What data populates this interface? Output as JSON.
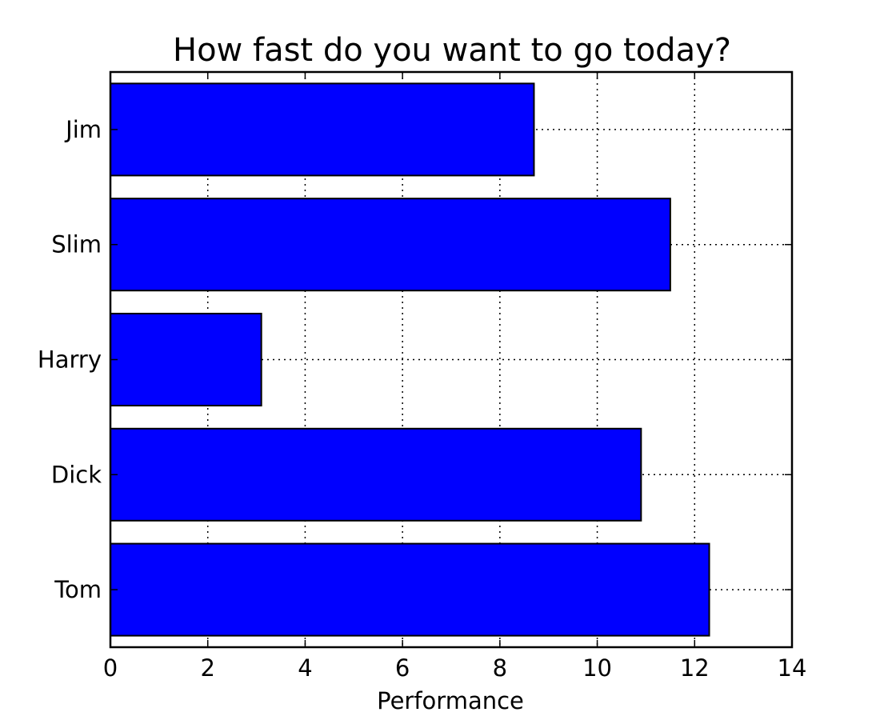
{
  "chart_data": {
    "type": "bar",
    "orientation": "horizontal",
    "title": "How fast do you want to go today?",
    "xlabel": "Performance",
    "ylabel": "",
    "categories": [
      "Tom",
      "Dick",
      "Harry",
      "Slim",
      "Jim"
    ],
    "values": [
      12.3,
      10.9,
      3.1,
      11.5,
      8.7
    ],
    "xlim": [
      0,
      14
    ],
    "xticks": [
      0,
      2,
      4,
      6,
      8,
      10,
      12,
      14
    ],
    "grid": true,
    "bar_color": "#0000ff",
    "edge_color": "#000000"
  }
}
